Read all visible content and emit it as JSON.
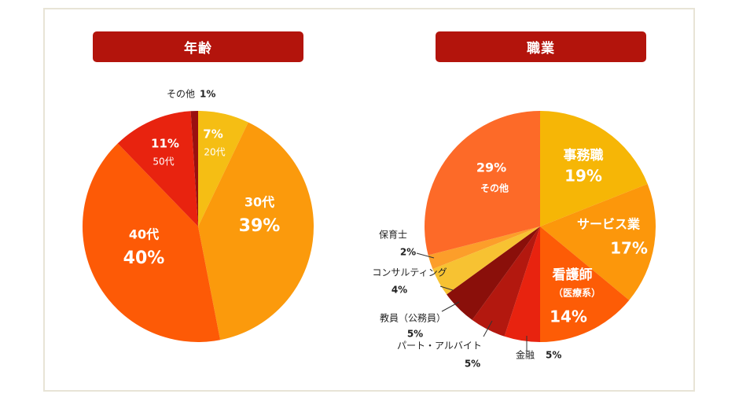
{
  "colors": {
    "badge": "#b3140c",
    "frame": "#e8e4d6"
  },
  "chart_data": [
    {
      "type": "pie",
      "title": "年齢",
      "start_angle_deg": 0,
      "direction": "clockwise",
      "slices": [
        {
          "label": "20代",
          "value": 7,
          "pct_text": "7%",
          "color": "#f5be14",
          "text_color": "#ffffff"
        },
        {
          "label": "30代",
          "value": 39,
          "pct_text": "39%",
          "color": "#fb9a0c",
          "text_color": "#ffffff"
        },
        {
          "label": "40代",
          "value": 40,
          "pct_text": "40%",
          "color": "#fd5a06",
          "text_color": "#ffffff"
        },
        {
          "label": "50代",
          "value": 11,
          "pct_text": "11%",
          "color": "#e8230f",
          "text_color": "#ffffff"
        },
        {
          "label": "その他",
          "value": 1,
          "pct_text": "1%",
          "color": "#9a1010",
          "text_color": "#222222"
        }
      ]
    },
    {
      "type": "pie",
      "title": "職業",
      "start_angle_deg": 0,
      "direction": "clockwise",
      "slices": [
        {
          "label": "事務職",
          "value": 19,
          "pct_text": "19%",
          "color": "#f6b606",
          "text_color": "#ffffff"
        },
        {
          "label": "サービス業",
          "value": 17,
          "pct_text": "17%",
          "color": "#fc970b",
          "text_color": "#ffffff"
        },
        {
          "label": "看護師",
          "sublabel": "（医療系）",
          "value": 14,
          "pct_text": "14%",
          "color": "#fd5c06",
          "text_color": "#ffffff"
        },
        {
          "label": "金融",
          "value": 5,
          "pct_text": "5%",
          "color": "#e8230f",
          "text_color": "#222222"
        },
        {
          "label": "パート・アルバイト",
          "value": 5,
          "pct_text": "5%",
          "color": "#b3180f",
          "text_color": "#222222"
        },
        {
          "label": "教員（公務員）",
          "value": 5,
          "pct_text": "5%",
          "color": "#8a0f0a",
          "text_color": "#222222"
        },
        {
          "label": "コンサルティング",
          "value": 4,
          "pct_text": "4%",
          "color": "#f7c232",
          "text_color": "#222222"
        },
        {
          "label": "保育士",
          "value": 2,
          "pct_text": "2%",
          "color": "#fc9e2a",
          "text_color": "#222222"
        },
        {
          "label": "その他",
          "value": 29,
          "pct_text": "29%",
          "color": "#fd6a28",
          "text_color": "#ffffff"
        }
      ]
    }
  ]
}
